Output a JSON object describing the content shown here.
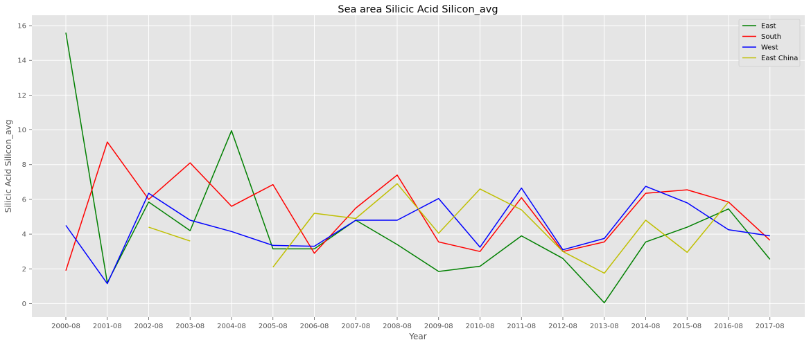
{
  "chart_data": {
    "type": "line",
    "title": "Sea area Silicic Acid Silicon_avg",
    "xlabel": "Year",
    "ylabel": "Silicic Acid Silicon_avg",
    "categories": [
      "2000-08",
      "2001-08",
      "2002-08",
      "2003-08",
      "2004-08",
      "2005-08",
      "2006-08",
      "2007-08",
      "2008-08",
      "2009-08",
      "2010-08",
      "2011-08",
      "2012-08",
      "2013-08",
      "2014-08",
      "2015-08",
      "2016-08",
      "2017-08"
    ],
    "yticks": [
      0,
      2,
      4,
      6,
      8,
      10,
      12,
      14,
      16
    ],
    "ylim": [
      -0.78,
      16.6
    ],
    "grid": true,
    "legend_position": "top-right",
    "series": [
      {
        "name": "East",
        "color": "#008000",
        "values": [
          15.6,
          1.2,
          5.85,
          4.2,
          9.95,
          3.15,
          3.15,
          4.8,
          3.4,
          1.85,
          2.15,
          3.9,
          2.6,
          0.05,
          3.55,
          4.4,
          5.45,
          2.55
        ]
      },
      {
        "name": "South",
        "color": "#ff0000",
        "values": [
          1.9,
          9.3,
          6.0,
          8.1,
          5.6,
          6.85,
          2.9,
          5.5,
          7.4,
          3.55,
          3.0,
          6.1,
          3.0,
          3.55,
          6.35,
          6.55,
          5.85,
          3.65
        ]
      },
      {
        "name": "West",
        "color": "#0000ff",
        "values": [
          4.5,
          1.15,
          6.35,
          4.8,
          4.15,
          3.35,
          3.3,
          4.8,
          4.8,
          6.05,
          3.25,
          6.65,
          3.1,
          3.75,
          6.75,
          5.8,
          4.25,
          3.9
        ]
      },
      {
        "name": "East China",
        "color": "#bfbf00",
        "values": [
          null,
          null,
          4.4,
          3.6,
          null,
          2.1,
          5.2,
          4.9,
          6.9,
          4.05,
          6.6,
          5.4,
          3.0,
          1.75,
          4.8,
          2.95,
          5.85,
          null
        ]
      }
    ]
  }
}
